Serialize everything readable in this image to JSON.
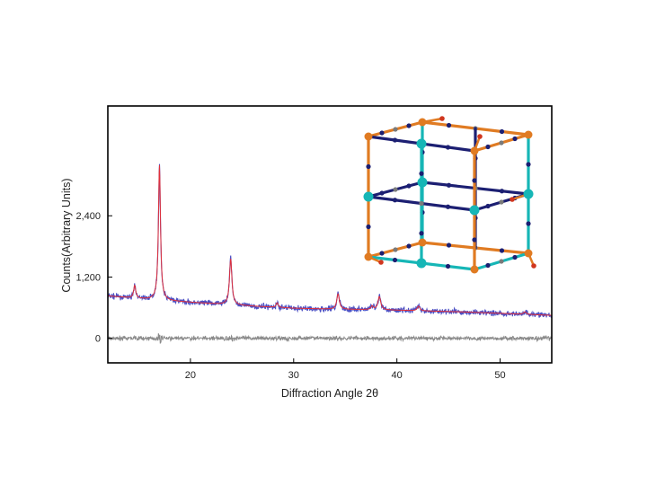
{
  "chart_data": {
    "type": "line",
    "title": "",
    "xlabel": "Diffraction Angle 2θ",
    "ylabel": "Counts(Arbitrary Units)",
    "xlim": [
      12,
      55
    ],
    "ylim": [
      -480,
      4550
    ],
    "x_ticks": [
      20,
      30,
      40,
      50
    ],
    "y_ticks": [
      0,
      1200,
      2400
    ],
    "y_tick_labels": [
      "0",
      "1,200",
      "2,400"
    ],
    "grid": false,
    "legend": "none",
    "colors": {
      "observed": "#4b4fc4",
      "calculated": "#e0303a",
      "difference": "#8a8a8a",
      "frame": "#000000"
    },
    "background": {
      "x": [
        12,
        16,
        18,
        22,
        26,
        30,
        34,
        38,
        42,
        46,
        50,
        55
      ],
      "y": [
        830,
        760,
        730,
        680,
        630,
        590,
        570,
        560,
        540,
        520,
        490,
        450
      ]
    },
    "peaks": [
      {
        "x": 14.6,
        "height": 250,
        "width": 0.12
      },
      {
        "x": 17.0,
        "height": 2650,
        "width": 0.12
      },
      {
        "x": 23.9,
        "height": 900,
        "width": 0.14
      },
      {
        "x": 28.4,
        "height": 90,
        "width": 0.12
      },
      {
        "x": 34.3,
        "height": 300,
        "width": 0.15
      },
      {
        "x": 37.6,
        "height": 70,
        "width": 0.12
      },
      {
        "x": 38.3,
        "height": 260,
        "width": 0.16
      },
      {
        "x": 42.1,
        "height": 90,
        "width": 0.15
      },
      {
        "x": 52.4,
        "height": 50,
        "width": 0.15
      }
    ],
    "difference_offset": 0
  }
}
